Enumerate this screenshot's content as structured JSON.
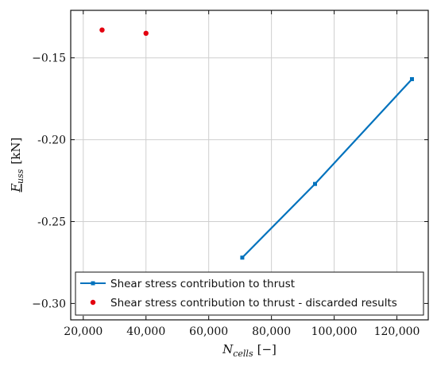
{
  "chart_data": {
    "type": "line",
    "title": "",
    "xlabel": {
      "main": "N",
      "sub": "cells",
      "unit": "[−]"
    },
    "ylabel": {
      "main": "F",
      "sub": "uss",
      "unit": "[kN]"
    },
    "xlim": [
      16000,
      130000
    ],
    "ylim": [
      -0.31,
      -0.121
    ],
    "x_ticks": [
      20000,
      40000,
      60000,
      80000,
      100000,
      120000
    ],
    "x_tick_labels": [
      "20,000",
      "40,000",
      "60,000",
      "80,000",
      "100,000",
      "120,000"
    ],
    "y_ticks": [
      -0.15,
      -0.2,
      -0.25,
      -0.3
    ],
    "y_tick_labels": [
      "−0.15",
      "-0.20",
      "-0.25",
      "−0.30"
    ],
    "grid": true,
    "legend_position": "bottom",
    "series": [
      {
        "name": "Shear stress contribution to thrust",
        "kind": "line",
        "color": "#0072bd",
        "marker": "square",
        "x": [
          70700,
          93900,
          124800
        ],
        "y": [
          -0.272,
          -0.227,
          -0.163
        ]
      },
      {
        "name": "Shear stress contribution to thrust - discarded results",
        "kind": "scatter",
        "color": "#e3000f",
        "marker": "circle",
        "x": [
          26000,
          40000
        ],
        "y": [
          -0.133,
          -0.135
        ]
      }
    ]
  }
}
